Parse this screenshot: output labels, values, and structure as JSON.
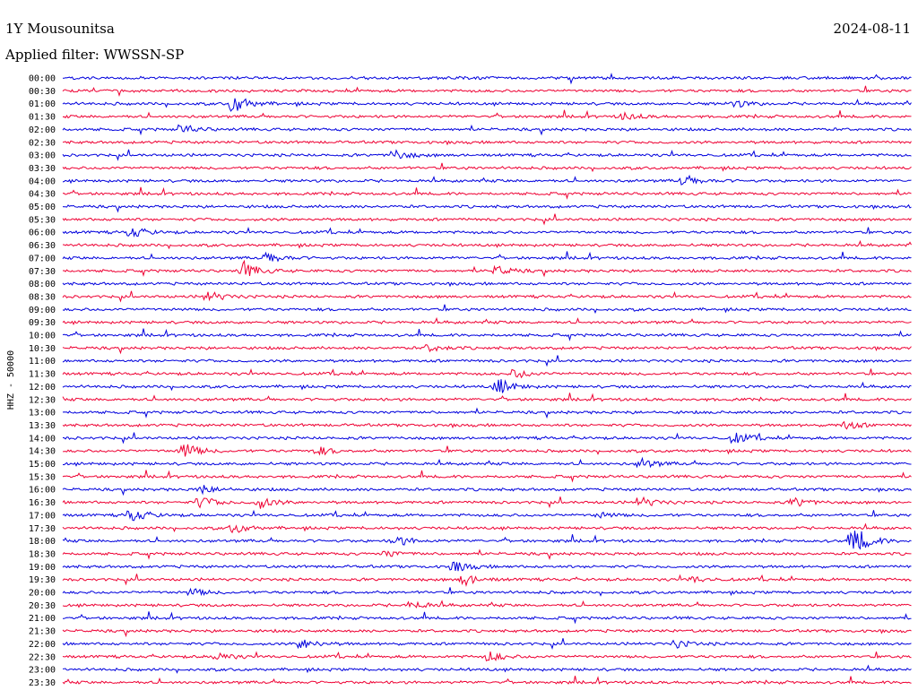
{
  "header": {
    "station": "1Y Mousounitsa",
    "date": "2024-08-11",
    "filter": "Applied filter: WWSSN-SP"
  },
  "chart_data": {
    "type": "line",
    "title": "1Y Mousounitsa",
    "ylabel": "HHZ - 50000",
    "trace_colors": [
      "#0000dd",
      "#ee0033"
    ],
    "y_tick_labels": [
      "00:00",
      "00:30",
      "01:00",
      "01:30",
      "02:00",
      "02:30",
      "03:00",
      "03:30",
      "04:00",
      "04:30",
      "05:00",
      "05:30",
      "06:00",
      "06:30",
      "07:00",
      "07:30",
      "08:00",
      "08:30",
      "09:00",
      "09:30",
      "10:00",
      "10:30",
      "11:00",
      "11:30",
      "12:00",
      "12:30",
      "13:00",
      "13:30",
      "14:00",
      "14:30",
      "15:00",
      "15:30",
      "16:00",
      "16:30",
      "17:00",
      "17:30",
      "18:00",
      "18:30",
      "19:00",
      "19:30",
      "20:00",
      "20:30",
      "21:00",
      "21:30",
      "22:00",
      "22:30",
      "23:00",
      "23:30"
    ],
    "x_range_minutes": [
      0,
      30
    ],
    "events": [
      {
        "row": 2,
        "t": 0.2,
        "amp": 1.6
      },
      {
        "row": 2,
        "t": 0.79,
        "amp": 0.6
      },
      {
        "row": 3,
        "t": 0.66,
        "amp": 0.6
      },
      {
        "row": 4,
        "t": 0.14,
        "amp": 0.7
      },
      {
        "row": 6,
        "t": 0.39,
        "amp": 0.8
      },
      {
        "row": 8,
        "t": 0.73,
        "amp": 0.9
      },
      {
        "row": 12,
        "t": 0.08,
        "amp": 0.8
      },
      {
        "row": 14,
        "t": 0.24,
        "amp": 0.9
      },
      {
        "row": 15,
        "t": 0.21,
        "amp": 1.5
      },
      {
        "row": 15,
        "t": 0.51,
        "amp": 0.7
      },
      {
        "row": 17,
        "t": 0.17,
        "amp": 0.9
      },
      {
        "row": 21,
        "t": 0.43,
        "amp": 0.6
      },
      {
        "row": 24,
        "t": 0.51,
        "amp": 1.4
      },
      {
        "row": 23,
        "t": 0.53,
        "amp": 0.8
      },
      {
        "row": 27,
        "t": 0.92,
        "amp": 0.7
      },
      {
        "row": 28,
        "t": 0.79,
        "amp": 0.9
      },
      {
        "row": 29,
        "t": 0.14,
        "amp": 1.4
      },
      {
        "row": 29,
        "t": 0.3,
        "amp": 0.6
      },
      {
        "row": 30,
        "t": 0.68,
        "amp": 0.8
      },
      {
        "row": 32,
        "t": 0.16,
        "amp": 0.8
      },
      {
        "row": 33,
        "t": 0.16,
        "amp": 1.0
      },
      {
        "row": 33,
        "t": 0.23,
        "amp": 0.9
      },
      {
        "row": 33,
        "t": 0.68,
        "amp": 0.8
      },
      {
        "row": 33,
        "t": 0.86,
        "amp": 0.8
      },
      {
        "row": 34,
        "t": 0.08,
        "amp": 1.0
      },
      {
        "row": 34,
        "t": 0.63,
        "amp": 0.5
      },
      {
        "row": 35,
        "t": 0.2,
        "amp": 0.8
      },
      {
        "row": 36,
        "t": 0.39,
        "amp": 0.9
      },
      {
        "row": 36,
        "t": 0.93,
        "amp": 2.5
      },
      {
        "row": 37,
        "t": 0.38,
        "amp": 0.5
      },
      {
        "row": 38,
        "t": 0.46,
        "amp": 0.9
      },
      {
        "row": 39,
        "t": 0.47,
        "amp": 1.0
      },
      {
        "row": 39,
        "t": 0.74,
        "amp": 0.5
      },
      {
        "row": 40,
        "t": 0.15,
        "amp": 0.6
      },
      {
        "row": 41,
        "t": 0.41,
        "amp": 0.7
      },
      {
        "row": 44,
        "t": 0.28,
        "amp": 0.9
      },
      {
        "row": 44,
        "t": 0.72,
        "amp": 0.6
      },
      {
        "row": 45,
        "t": 0.18,
        "amp": 0.6
      },
      {
        "row": 45,
        "t": 0.5,
        "amp": 0.8
      }
    ]
  }
}
